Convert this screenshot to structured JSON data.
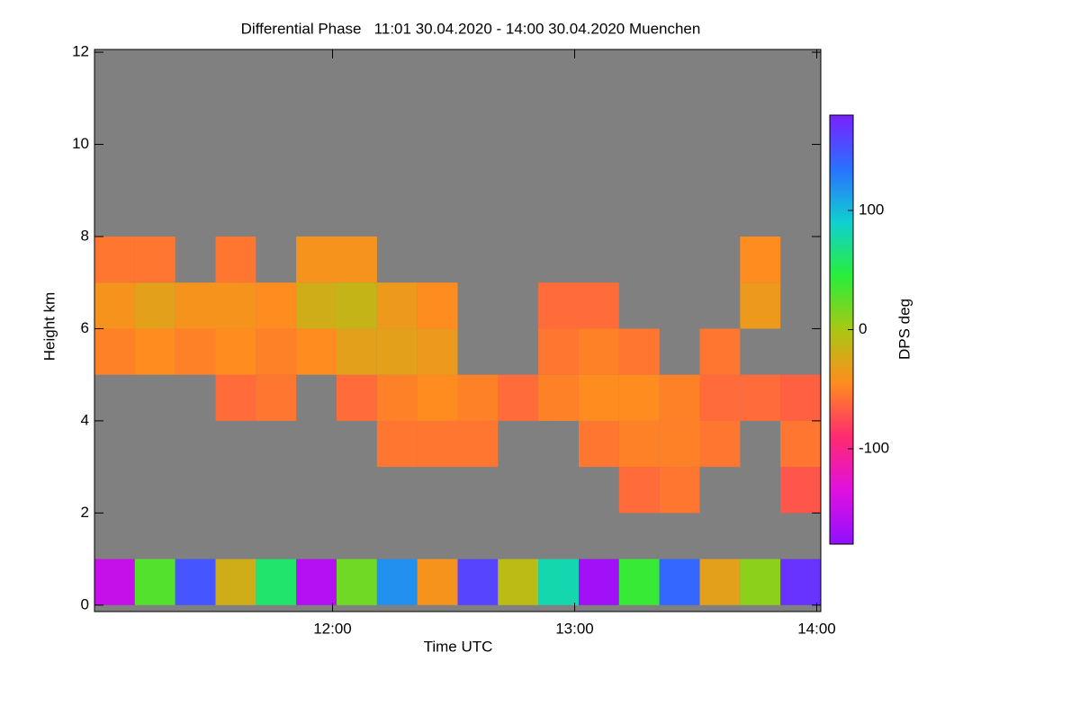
{
  "chart_data": {
    "type": "heatmap",
    "title": "Differential Phase   11:01 30.04.2020 - 14:00 30.04.2020 Muenchen",
    "x_label": "Time UTC",
    "y_label": "Height km",
    "colorbar_label": "DPS deg",
    "x": [
      11.1,
      11.2667,
      11.4333,
      11.6,
      11.7667,
      11.9333,
      12.1,
      12.2667,
      12.4333,
      12.6,
      12.7667,
      12.9333,
      13.1,
      13.2667,
      13.4333,
      13.6,
      13.7667,
      13.9333
    ],
    "y": [
      0.5,
      1.5,
      2.5,
      3.5,
      4.5,
      5.5,
      6.5,
      7.5,
      8.5
    ],
    "z": [
      [
        -150,
        30,
        150,
        -20,
        60,
        -160,
        20,
        120,
        -40,
        160,
        -10,
        80,
        -170,
        40,
        140,
        -30,
        10,
        170
      ],
      [
        null,
        null,
        null,
        null,
        null,
        null,
        null,
        null,
        null,
        null,
        null,
        null,
        null,
        null,
        null,
        null,
        null,
        null
      ],
      [
        null,
        null,
        null,
        null,
        null,
        null,
        null,
        null,
        null,
        null,
        null,
        null,
        null,
        -60,
        -55,
        null,
        null,
        -70
      ],
      [
        null,
        null,
        null,
        null,
        null,
        null,
        null,
        -55,
        -55,
        -55,
        null,
        null,
        -55,
        -50,
        -50,
        -55,
        null,
        -55
      ],
      [
        null,
        null,
        null,
        -60,
        -55,
        null,
        -60,
        -50,
        -45,
        -50,
        -60,
        -50,
        -45,
        -45,
        -50,
        -60,
        -60,
        -65
      ],
      [
        -50,
        -45,
        -50,
        -45,
        -50,
        -45,
        -30,
        -30,
        -35,
        null,
        null,
        -55,
        -50,
        -55,
        null,
        -55,
        null,
        null
      ],
      [
        -40,
        -30,
        -40,
        -40,
        -45,
        -20,
        -15,
        -35,
        -45,
        null,
        null,
        -60,
        -60,
        null,
        null,
        null,
        -35,
        null
      ],
      [
        -55,
        -55,
        null,
        -55,
        null,
        -40,
        -40,
        null,
        null,
        null,
        null,
        null,
        null,
        null,
        null,
        null,
        -45,
        null
      ],
      [
        null,
        null,
        null,
        null,
        null,
        null,
        null,
        null,
        null,
        null,
        null,
        null,
        null,
        null,
        null,
        null,
        null,
        null
      ]
    ],
    "xlim": [
      11.0167,
      14.0167
    ],
    "ylim": [
      -0.14,
      12.06
    ],
    "zlim": [
      -180,
      180
    ],
    "xticks": [
      {
        "value": 12,
        "label": "12:00"
      },
      {
        "value": 13,
        "label": "13:00"
      },
      {
        "value": 14,
        "label": "14:00"
      }
    ],
    "yticks": [
      0,
      2,
      4,
      6,
      8,
      10,
      12
    ],
    "zticks": [
      -100,
      0,
      100
    ],
    "background": "#808080",
    "colormap": [
      "#9010ff",
      "#e010e0",
      "#ff2a70",
      "#ff8c1e",
      "#a8c814",
      "#28ee3a",
      "#10d0d0",
      "#2a70ff",
      "#7a20ff"
    ]
  }
}
